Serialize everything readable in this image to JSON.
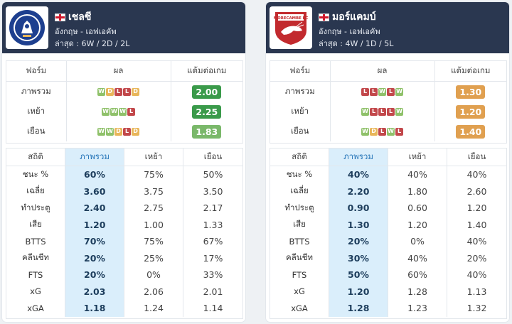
{
  "colors": {
    "header_bg": "#2a3750",
    "win": "#8fc16a",
    "draw": "#e8b65a",
    "loss": "#c2484b",
    "ppg_green": "#3a9a4a",
    "ppg_lightgreen": "#7ab86a",
    "ppg_orange": "#e0a050",
    "highlight_col": "#daeefb"
  },
  "teams": [
    {
      "name": "เชลซี",
      "country_flag": "england-flag-icon",
      "league": "อังกฤษ - เอฟเอคัพ",
      "recent": "ล่าสุด : 6W / 2D / 2L",
      "logo": "chelsea-crest-icon",
      "form_headers": [
        "ฟอร์ม",
        "ผล",
        "แต้มต่อเกม"
      ],
      "form_rows": [
        {
          "label": "ภาพรวม",
          "results": [
            "W",
            "D",
            "L",
            "L",
            "D"
          ],
          "ppg": "2.00",
          "ppg_color": "#3a9a4a"
        },
        {
          "label": "เหย้า",
          "results": [
            "W",
            "W",
            "W",
            "L"
          ],
          "ppg": "2.25",
          "ppg_color": "#3a9a4a"
        },
        {
          "label": "เยือน",
          "results": [
            "W",
            "W",
            "D",
            "L",
            "D"
          ],
          "ppg": "1.83",
          "ppg_color": "#7ab86a"
        }
      ],
      "stats_headers": [
        "สถิติ",
        "ภาพรวม",
        "เหย้า",
        "เยือน"
      ],
      "stats_rows": [
        [
          "ชนะ %",
          "60%",
          "75%",
          "50%"
        ],
        [
          "เฉลี่ย",
          "3.60",
          "3.75",
          "3.50"
        ],
        [
          "ทำประตู",
          "2.40",
          "2.75",
          "2.17"
        ],
        [
          "เสีย",
          "1.20",
          "1.00",
          "1.33"
        ],
        [
          "BTTS",
          "70%",
          "75%",
          "67%"
        ],
        [
          "คลีนชีท",
          "20%",
          "25%",
          "17%"
        ],
        [
          "FTS",
          "20%",
          "0%",
          "33%"
        ],
        [
          "xG",
          "2.03",
          "2.06",
          "2.01"
        ],
        [
          "xGA",
          "1.18",
          "1.24",
          "1.14"
        ]
      ]
    },
    {
      "name": "มอร์แคมบ์",
      "country_flag": "england-flag-icon",
      "league": "อังกฤษ - เอฟเอคัพ",
      "recent": "ล่าสุด : 4W / 1D / 5L",
      "logo": "morecambe-crest-icon",
      "logo_text": "MORECAMBE FC",
      "form_headers": [
        "ฟอร์ม",
        "ผล",
        "แต้มต่อเกม"
      ],
      "form_rows": [
        {
          "label": "ภาพรวม",
          "results": [
            "L",
            "L",
            "W",
            "L",
            "W"
          ],
          "ppg": "1.30",
          "ppg_color": "#e0a050"
        },
        {
          "label": "เหย้า",
          "results": [
            "W",
            "L",
            "L",
            "L",
            "W"
          ],
          "ppg": "1.20",
          "ppg_color": "#e0a050"
        },
        {
          "label": "เยือน",
          "results": [
            "W",
            "D",
            "L",
            "W",
            "L"
          ],
          "ppg": "1.40",
          "ppg_color": "#e0a050"
        }
      ],
      "stats_headers": [
        "สถิติ",
        "ภาพรวม",
        "เหย้า",
        "เยือน"
      ],
      "stats_rows": [
        [
          "ชนะ %",
          "40%",
          "40%",
          "40%"
        ],
        [
          "เฉลี่ย",
          "2.20",
          "1.80",
          "2.60"
        ],
        [
          "ทำประตู",
          "0.90",
          "0.60",
          "1.20"
        ],
        [
          "เสีย",
          "1.30",
          "1.20",
          "1.40"
        ],
        [
          "BTTS",
          "20%",
          "0%",
          "40%"
        ],
        [
          "คลีนชีท",
          "30%",
          "40%",
          "20%"
        ],
        [
          "FTS",
          "50%",
          "60%",
          "40%"
        ],
        [
          "xG",
          "1.20",
          "1.28",
          "1.13"
        ],
        [
          "xGA",
          "1.28",
          "1.23",
          "1.32"
        ]
      ]
    }
  ]
}
